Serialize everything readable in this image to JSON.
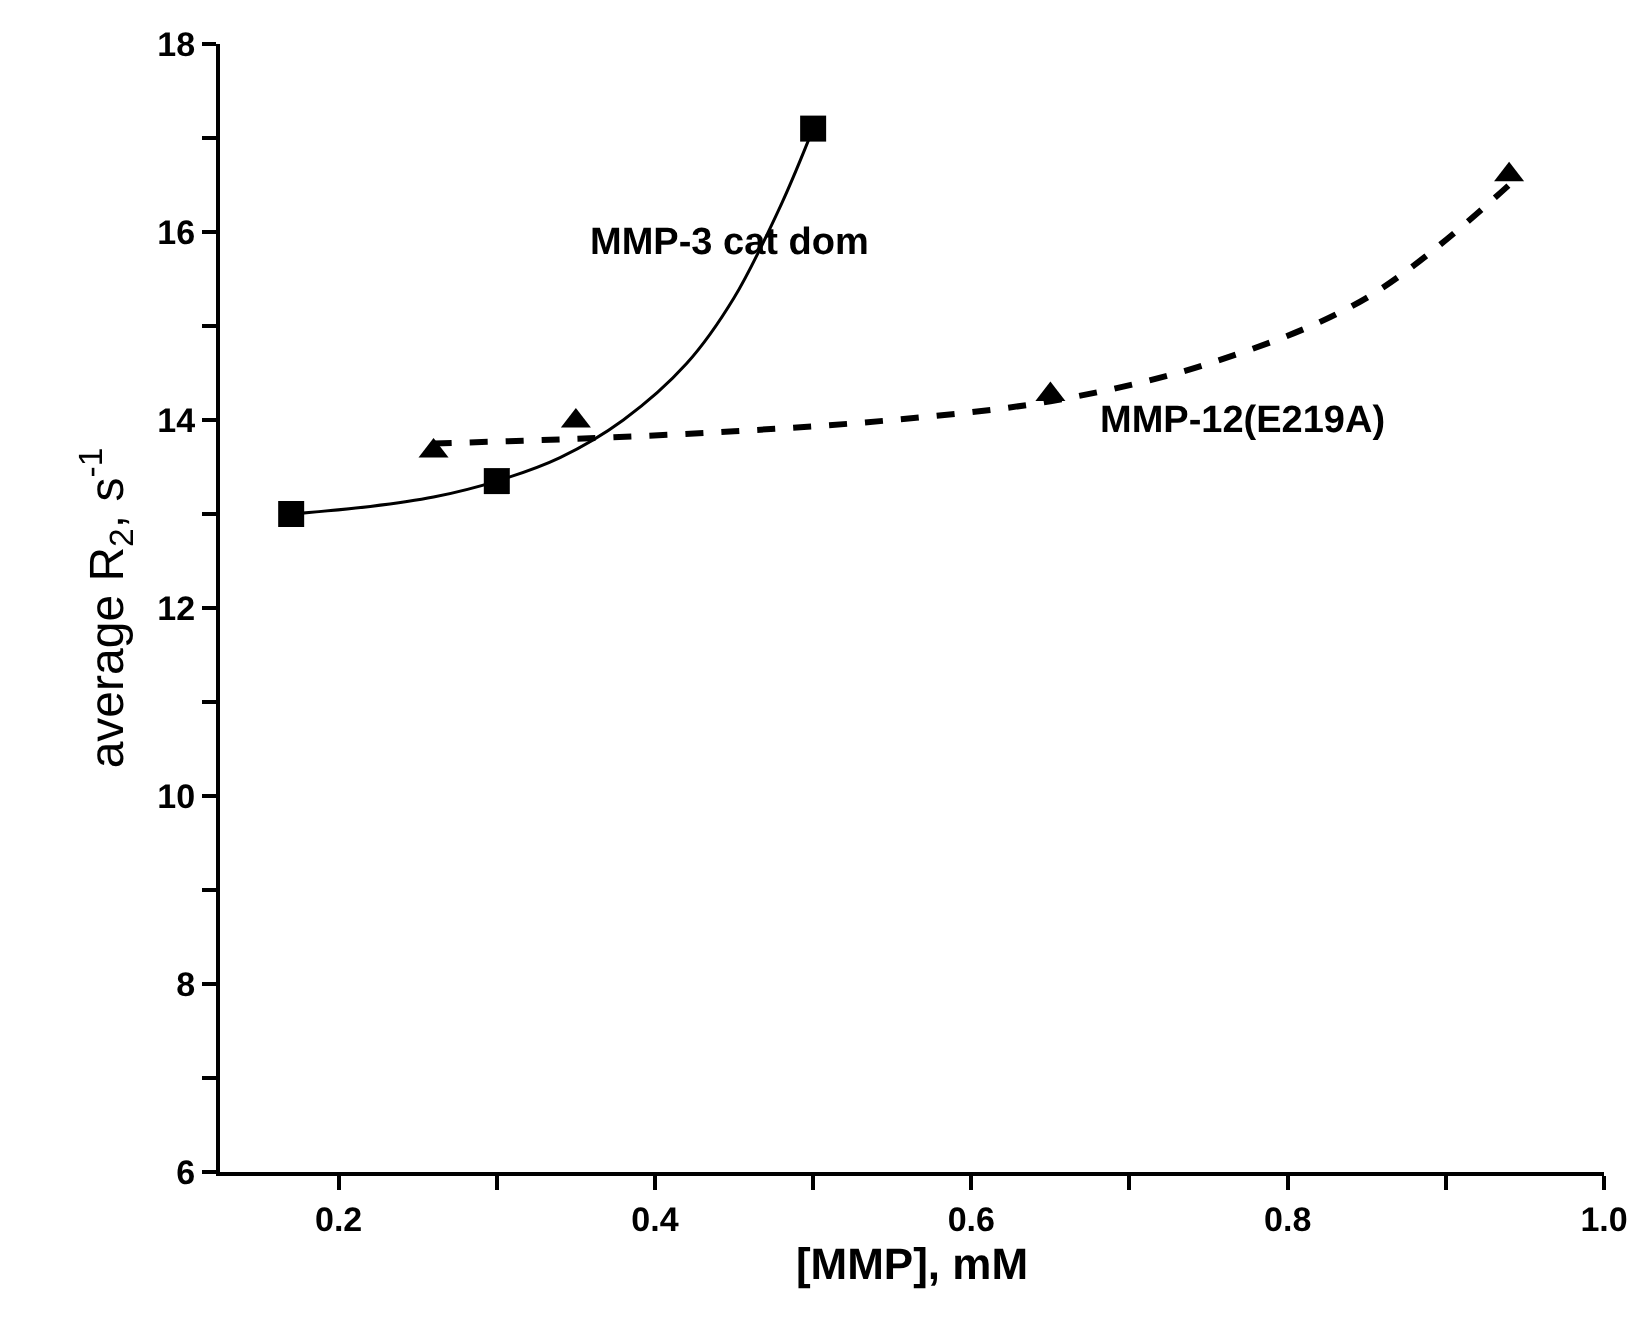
{
  "chart_data": {
    "type": "scatter",
    "xlabel": "[MMP], mM",
    "ylabel": "average R$_{2}$, s$^{-1}$",
    "xlim": [
      0.125,
      1.0
    ],
    "ylim": [
      6,
      18
    ],
    "xticks": [
      0.2,
      {
        "value": 0.3,
        "label": null
      },
      0.4,
      {
        "value": 0.5,
        "label": null
      },
      0.6,
      {
        "value": 0.7,
        "label": null
      },
      0.8,
      {
        "value": 0.9,
        "label": null
      },
      {
        "value": 1.0,
        "label": "1.0"
      }
    ],
    "yticks": [
      6,
      {
        "value": 7,
        "label": null
      },
      8,
      {
        "value": 9,
        "label": null
      },
      10,
      {
        "value": 11,
        "label": null
      },
      12,
      {
        "value": 13,
        "label": null
      },
      14,
      {
        "value": 15,
        "label": null
      },
      16,
      {
        "value": 17,
        "label": null
      },
      18
    ],
    "series": [
      {
        "marker": "square",
        "color": "#000000",
        "x": [
          0.17,
          0.3,
          0.5
        ],
        "values": [
          13.0,
          13.35,
          17.1
        ]
      },
      {
        "marker": "triangle",
        "color": "#000000",
        "x": [
          0.26,
          0.35,
          0.65,
          0.94
        ],
        "values": [
          13.67,
          13.99,
          14.27,
          16.61
        ]
      },
      {
        "type": "line",
        "line_style": "solid",
        "color": "#000000",
        "x": [
          0.17,
          0.22,
          0.26,
          0.3,
          0.34,
          0.38,
          0.42,
          0.45,
          0.48,
          0.5
        ],
        "values": [
          13.0,
          13.08,
          13.18,
          13.35,
          13.6,
          14.0,
          14.6,
          15.3,
          16.3,
          17.1
        ]
      },
      {
        "type": "line",
        "line_style": "dashed",
        "color": "#000000",
        "x": [
          0.26,
          0.35,
          0.45,
          0.55,
          0.65,
          0.75,
          0.85,
          0.94
        ],
        "values": [
          13.75,
          13.8,
          13.88,
          14.0,
          14.2,
          14.6,
          15.3,
          16.5
        ]
      }
    ],
    "annotations": [
      "MMP-3 cat dom",
      "MMP-12(E219A)"
    ]
  }
}
